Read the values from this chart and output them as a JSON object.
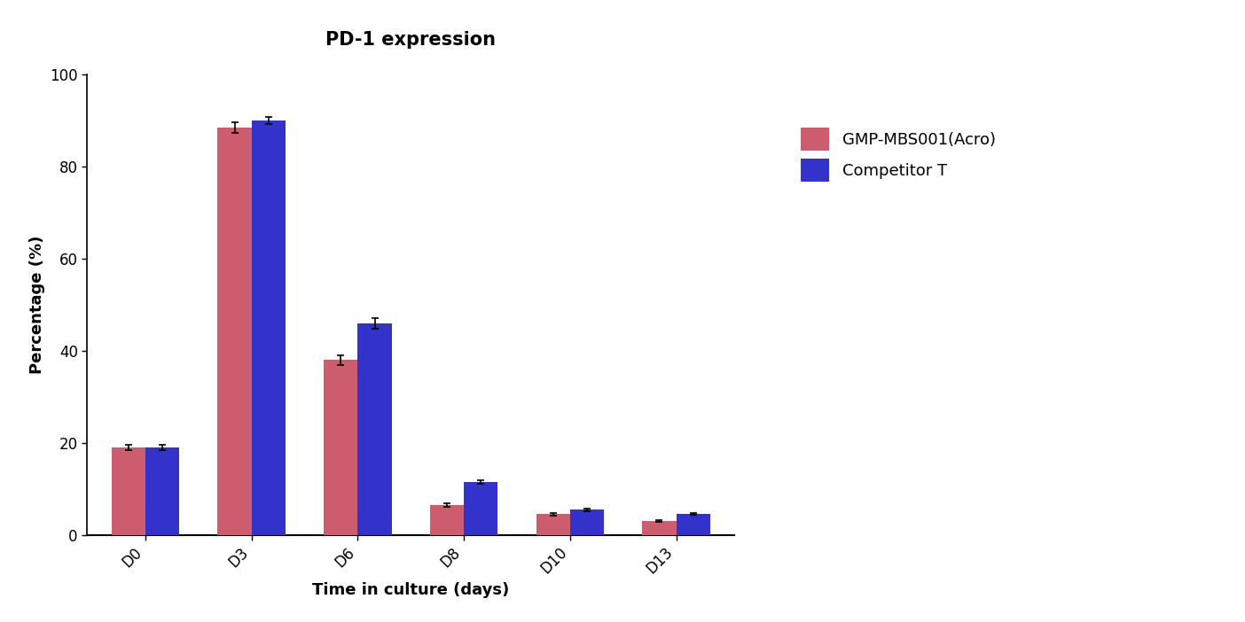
{
  "title": "PD-1 expression",
  "xlabel": "Time in culture (days)",
  "ylabel": "Percentage (%)",
  "categories": [
    "D0",
    "D3",
    "D6",
    "D8",
    "D10",
    "D13"
  ],
  "series": [
    {
      "label": "GMP-MBS001(Acro)",
      "color": "#CD5C6E",
      "values": [
        19.0,
        88.5,
        38.0,
        6.5,
        4.5,
        3.0
      ],
      "errors": [
        0.5,
        1.2,
        1.0,
        0.4,
        0.3,
        0.2
      ]
    },
    {
      "label": "Competitor T",
      "color": "#3333CC",
      "values": [
        19.0,
        90.0,
        46.0,
        11.5,
        5.5,
        4.5
      ],
      "errors": [
        0.5,
        0.8,
        1.2,
        0.4,
        0.3,
        0.2
      ]
    }
  ],
  "ylim": [
    0,
    100
  ],
  "yticks": [
    0,
    20,
    40,
    60,
    80,
    100
  ],
  "bar_width": 0.32,
  "title_fontsize": 15,
  "axis_label_fontsize": 13,
  "tick_fontsize": 12,
  "legend_fontsize": 13,
  "background_color": "#ffffff",
  "figsize": [
    14.04,
    7.02
  ],
  "dpi": 100
}
